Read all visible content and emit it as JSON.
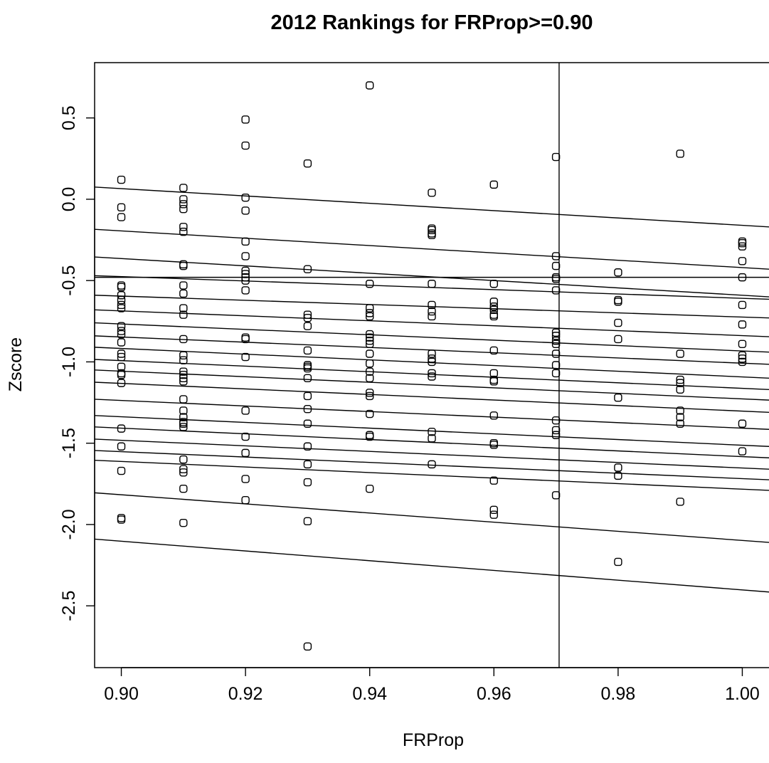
{
  "chart_data": {
    "type": "scatter",
    "title": "2012 Rankings for FRProp>=0.90",
    "xlabel": "FRProp",
    "ylabel": "Zscore",
    "xlim": [
      0.8957,
      1.0043
    ],
    "ylim": [
      -2.88,
      0.84
    ],
    "x_ticks": [
      0.9,
      0.92,
      0.94,
      0.96,
      0.98,
      1.0
    ],
    "x_tick_labels": [
      "0.90",
      "0.92",
      "0.94",
      "0.96",
      "0.98",
      "1.00"
    ],
    "y_ticks": [
      0.5,
      0.0,
      -0.5,
      -1.0,
      -1.5,
      -2.0,
      -2.5
    ],
    "y_tick_labels": [
      "0.5",
      "0.0",
      "-0.5",
      "-1.0",
      "-1.5",
      "-2.0",
      "-2.5"
    ],
    "grid": false,
    "legend": "none",
    "reference_lines": {
      "horizontal_y": -0.48,
      "vertical_x": 0.9705
    },
    "fitted_lines": [
      {
        "y_start": 0.075,
        "y_end": -0.17
      },
      {
        "y_start": -0.185,
        "y_end": -0.43
      },
      {
        "y_start": -0.355,
        "y_end": -0.6
      },
      {
        "y_start": -0.47,
        "y_end": -0.615
      },
      {
        "y_start": -0.59,
        "y_end": -0.73
      },
      {
        "y_start": -0.68,
        "y_end": -0.845
      },
      {
        "y_start": -0.76,
        "y_end": -0.94
      },
      {
        "y_start": -0.84,
        "y_end": -1.015
      },
      {
        "y_start": -0.91,
        "y_end": -1.1
      },
      {
        "y_start": -0.985,
        "y_end": -1.17
      },
      {
        "y_start": -1.05,
        "y_end": -1.235
      },
      {
        "y_start": -1.125,
        "y_end": -1.31
      },
      {
        "y_start": -1.23,
        "y_end": -1.415
      },
      {
        "y_start": -1.33,
        "y_end": -1.52
      },
      {
        "y_start": -1.4,
        "y_end": -1.59
      },
      {
        "y_start": -1.475,
        "y_end": -1.66
      },
      {
        "y_start": -1.545,
        "y_end": -1.725
      },
      {
        "y_start": -1.605,
        "y_end": -1.79
      },
      {
        "y_start": -1.805,
        "y_end": -2.11
      },
      {
        "y_start": -2.09,
        "y_end": -2.415
      }
    ],
    "points": [
      {
        "x": 0.9,
        "y": [
          0.12,
          -0.05,
          -0.11,
          -0.53,
          -0.54,
          -0.59,
          -0.62,
          -0.65,
          -0.67,
          -0.78,
          -0.81,
          -0.83,
          -0.88,
          -0.95,
          -0.97,
          -1.03,
          -1.07,
          -1.08,
          -1.13,
          -1.41,
          -1.52,
          -1.67,
          -1.96,
          -1.97
        ]
      },
      {
        "x": 0.91,
        "y": [
          0.07,
          0.0,
          -0.03,
          -0.06,
          -0.17,
          -0.2,
          -0.4,
          -0.41,
          -0.53,
          -0.58,
          -0.67,
          -0.71,
          -0.86,
          -0.96,
          -0.99,
          -1.06,
          -1.08,
          -1.1,
          -1.12,
          -1.23,
          -1.3,
          -1.34,
          -1.37,
          -1.38,
          -1.4,
          -1.6,
          -1.66,
          -1.68,
          -1.78,
          -1.99
        ]
      },
      {
        "x": 0.92,
        "y": [
          0.49,
          0.33,
          0.01,
          -0.07,
          -0.26,
          -0.35,
          -0.44,
          -0.46,
          -0.48,
          -0.5,
          -0.56,
          -0.85,
          -0.86,
          -0.97,
          -1.3,
          -1.46,
          -1.56,
          -1.72,
          -1.85
        ]
      },
      {
        "x": 0.93,
        "y": [
          0.22,
          -0.43,
          -0.71,
          -0.73,
          -0.78,
          -0.93,
          -1.02,
          -1.03,
          -1.04,
          -1.1,
          -1.21,
          -1.29,
          -1.38,
          -1.52,
          -1.63,
          -1.74,
          -1.98,
          -2.75
        ]
      },
      {
        "x": 0.94,
        "y": [
          0.7,
          -0.52,
          -0.67,
          -0.7,
          -0.72,
          -0.83,
          -0.85,
          -0.87,
          -0.89,
          -0.95,
          -1.01,
          -1.06,
          -1.1,
          -1.19,
          -1.21,
          -1.32,
          -1.45,
          -1.46,
          -1.78
        ]
      },
      {
        "x": 0.95,
        "y": [
          0.04,
          -0.18,
          -0.19,
          -0.21,
          -0.22,
          -0.52,
          -0.65,
          -0.69,
          -0.72,
          -0.95,
          -0.98,
          -1.0,
          -1.07,
          -1.09,
          -1.43,
          -1.47,
          -1.63
        ]
      },
      {
        "x": 0.96,
        "y": [
          0.09,
          -0.52,
          -0.63,
          -0.66,
          -0.68,
          -0.71,
          -0.72,
          -0.93,
          -1.07,
          -1.11,
          -1.12,
          -1.33,
          -1.5,
          -1.51,
          -1.73,
          -1.91,
          -1.94
        ]
      },
      {
        "x": 0.97,
        "y": [
          0.26,
          -0.35,
          -0.41,
          -0.48,
          -0.49,
          -0.56,
          -0.82,
          -0.84,
          -0.87,
          -0.89,
          -0.95,
          -1.02,
          -1.07,
          -1.36,
          -1.42,
          -1.45,
          -1.82
        ]
      },
      {
        "x": 0.98,
        "y": [
          -0.45,
          -0.62,
          -0.63,
          -0.76,
          -0.86,
          -1.22,
          -1.65,
          -1.7,
          -2.23
        ]
      },
      {
        "x": 0.99,
        "y": [
          0.28,
          -0.95,
          -1.11,
          -1.13,
          -1.17,
          -1.3,
          -1.34,
          -1.38,
          -1.86
        ]
      },
      {
        "x": 1.0,
        "y": [
          -0.26,
          -0.27,
          -0.29,
          -0.38,
          -0.48,
          -0.65,
          -0.77,
          -0.89,
          -0.96,
          -0.98,
          -1.0,
          -1.38,
          -1.55
        ]
      }
    ]
  }
}
